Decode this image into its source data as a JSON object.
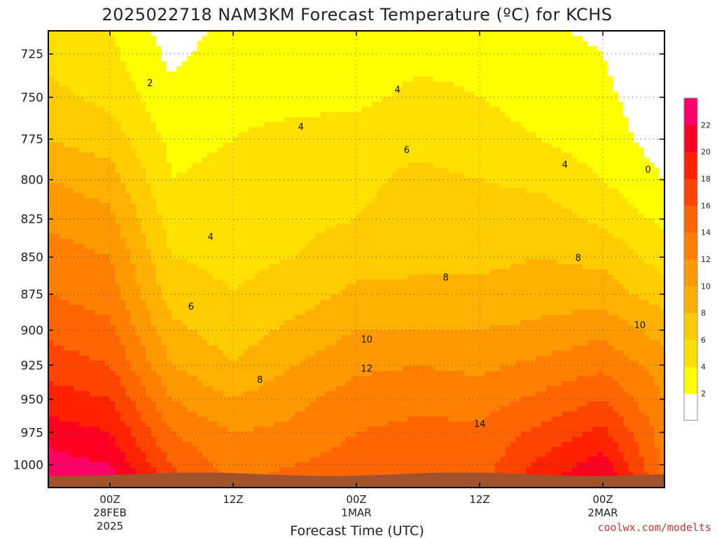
{
  "chart_data": {
    "type": "heatmap",
    "title": "2025022718 NAM3KM Forecast Temperature (ºC) for KCHS",
    "xlabel": "Forecast Time (UTC)",
    "ylabel": "",
    "credit": "coolwx.com/modelts",
    "x_ticks": [
      {
        "hour": 6,
        "lines": [
          "00Z",
          "28FEB",
          "2025"
        ]
      },
      {
        "hour": 18,
        "lines": [
          "12Z"
        ]
      },
      {
        "hour": 30,
        "lines": [
          "00Z",
          "1MAR"
        ]
      },
      {
        "hour": 42,
        "lines": [
          "12Z"
        ]
      },
      {
        "hour": 54,
        "lines": [
          "00Z",
          "2MAR"
        ]
      }
    ],
    "xlim_hours": [
      0,
      60
    ],
    "y_ticks": [
      "725",
      "750",
      "775",
      "800",
      "825",
      "850",
      "875",
      "900",
      "925",
      "950",
      "975",
      "1000"
    ],
    "y_tick_values": [
      725,
      750,
      775,
      800,
      825,
      850,
      875,
      900,
      925,
      950,
      975,
      1000
    ],
    "ylim_hpa": [
      712,
      1018
    ],
    "y_scale": "log-pressure (inverted)",
    "grid": true,
    "colorbar": {
      "labels": [
        "2",
        "4",
        "6",
        "8",
        "10",
        "12",
        "14",
        "16",
        "18",
        "20",
        "22"
      ],
      "colors": [
        "#ffffff",
        "#ffff00",
        "#ffe000",
        "#ffcc00",
        "#ffb000",
        "#ff9900",
        "#ff8000",
        "#ff6600",
        "#ff4400",
        "#ff2200",
        "#ff0022",
        "#ff0066"
      ]
    },
    "contour_labels": [
      {
        "text": "2",
        "hour": 9.9,
        "hpa": 742
      },
      {
        "text": "4",
        "hour": 15.8,
        "hpa": 837
      },
      {
        "text": "4",
        "hour": 24.6,
        "hpa": 768
      },
      {
        "text": "4",
        "hour": 34.0,
        "hpa": 746
      },
      {
        "text": "4",
        "hour": 50.3,
        "hpa": 791
      },
      {
        "text": "6",
        "hour": 13.9,
        "hpa": 884
      },
      {
        "text": "6",
        "hour": 34.9,
        "hpa": 782
      },
      {
        "text": "8",
        "hour": 20.6,
        "hpa": 936
      },
      {
        "text": "8",
        "hour": 38.7,
        "hpa": 864
      },
      {
        "text": "8",
        "hour": 51.6,
        "hpa": 851
      },
      {
        "text": "10",
        "hour": 31.0,
        "hpa": 907
      },
      {
        "text": "10",
        "hour": 57.6,
        "hpa": 897
      },
      {
        "text": "12",
        "hour": 31.0,
        "hpa": 928
      },
      {
        "text": "14",
        "hour": 42.0,
        "hpa": 969
      },
      {
        "text": "0",
        "hour": 58.4,
        "hpa": 794
      }
    ],
    "temperature_profiles": [
      {
        "hour": 0,
        "hpa": [
          725,
          750,
          775,
          800,
          825,
          850,
          875,
          900,
          925,
          950,
          975,
          1000
        ],
        "temp_c": [
          5.5,
          6.5,
          8.0,
          10.0,
          11.5,
          13.0,
          14.0,
          15.5,
          17.0,
          19.0,
          21.0,
          23.0
        ]
      },
      {
        "hour": 6,
        "hpa": [
          725,
          750,
          775,
          800,
          825,
          850,
          875,
          900,
          925,
          950,
          975,
          1000
        ],
        "temp_c": [
          4.5,
          5.5,
          7.0,
          9.0,
          10.5,
          12.0,
          13.0,
          14.5,
          16.0,
          18.0,
          20.0,
          22.0
        ]
      },
      {
        "hour": 12,
        "hpa": [
          725,
          750,
          775,
          800,
          825,
          850,
          875,
          900,
          925,
          950,
          975,
          1000
        ],
        "temp_c": [
          1.5,
          2.5,
          3.5,
          4.0,
          5.0,
          6.0,
          7.0,
          8.5,
          10.0,
          12.0,
          14.0,
          16.0
        ]
      },
      {
        "hour": 18,
        "hpa": [
          725,
          750,
          775,
          800,
          825,
          850,
          875,
          900,
          925,
          950,
          975,
          1000
        ],
        "temp_c": [
          3.0,
          3.5,
          4.0,
          4.5,
          5.0,
          5.5,
          6.0,
          7.0,
          8.0,
          10.0,
          12.0,
          13.0
        ]
      },
      {
        "hour": 24,
        "hpa": [
          725,
          750,
          775,
          800,
          825,
          850,
          875,
          900,
          925,
          950,
          975,
          1000
        ],
        "temp_c": [
          3.0,
          3.5,
          4.5,
          5.0,
          5.5,
          6.0,
          7.0,
          8.5,
          10.0,
          11.5,
          12.5,
          14.0
        ]
      },
      {
        "hour": 30,
        "hpa": [
          725,
          750,
          775,
          800,
          825,
          850,
          875,
          900,
          925,
          950,
          975,
          1000
        ],
        "temp_c": [
          3.0,
          3.5,
          5.0,
          5.5,
          6.0,
          7.0,
          8.5,
          10.0,
          11.5,
          13.0,
          14.0,
          15.0
        ]
      },
      {
        "hour": 36,
        "hpa": [
          725,
          750,
          775,
          800,
          825,
          850,
          875,
          900,
          925,
          950,
          975,
          1000
        ],
        "temp_c": [
          3.5,
          4.5,
          5.5,
          6.5,
          7.0,
          7.5,
          8.5,
          10.0,
          12.0,
          13.5,
          14.5,
          15.0
        ]
      },
      {
        "hour": 42,
        "hpa": [
          725,
          750,
          775,
          800,
          825,
          850,
          875,
          900,
          925,
          950,
          975,
          1000
        ],
        "temp_c": [
          3.5,
          4.0,
          5.0,
          6.0,
          7.0,
          7.5,
          8.5,
          10.0,
          11.5,
          13.0,
          14.5,
          15.0
        ]
      },
      {
        "hour": 48,
        "hpa": [
          725,
          750,
          775,
          800,
          825,
          850,
          875,
          900,
          925,
          950,
          975,
          1000
        ],
        "temp_c": [
          2.5,
          3.0,
          4.0,
          5.5,
          7.0,
          8.0,
          9.0,
          10.5,
          12.5,
          14.5,
          16.5,
          18.5
        ]
      },
      {
        "hour": 54,
        "hpa": [
          725,
          750,
          775,
          800,
          825,
          850,
          875,
          900,
          925,
          950,
          975,
          1000
        ],
        "temp_c": [
          2.0,
          2.5,
          3.0,
          4.0,
          5.5,
          7.5,
          9.0,
          11.5,
          13.5,
          16.0,
          18.5,
          21.0
        ]
      },
      {
        "hour": 60,
        "hpa": [
          725,
          750,
          775,
          800,
          825,
          850,
          875,
          900,
          925,
          950,
          975,
          1000
        ],
        "temp_c": [
          -0.5,
          0.5,
          1.0,
          2.0,
          3.5,
          5.0,
          7.0,
          9.0,
          11.0,
          12.0,
          13.0,
          13.5
        ]
      }
    ]
  }
}
